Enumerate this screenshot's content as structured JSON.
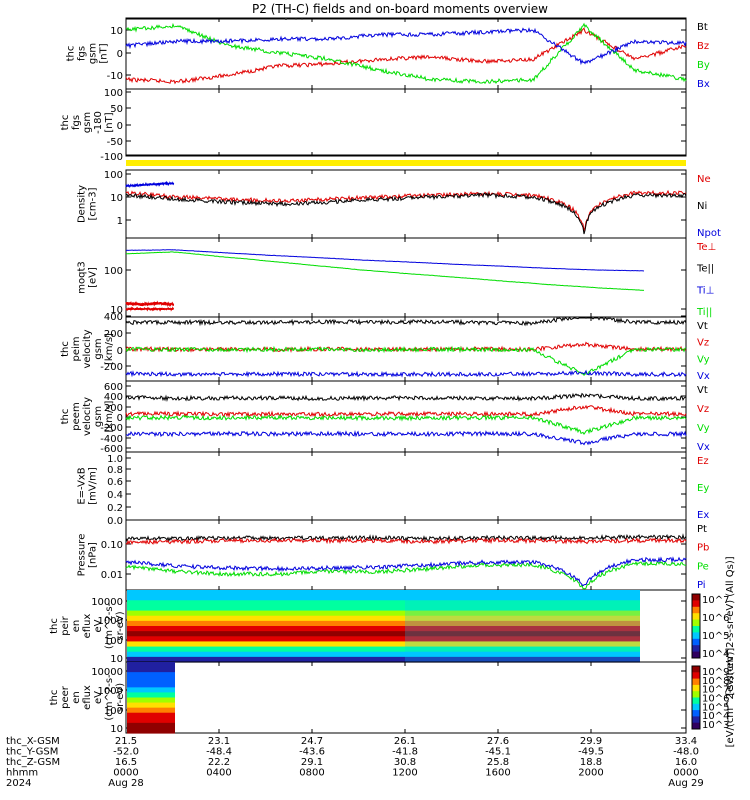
{
  "title": "P2 (TH-C) fields and on-board moments overview",
  "colors": {
    "black": "#000000",
    "red": "#e00000",
    "green": "#00dd00",
    "blue": "#0000dd",
    "yellow": "#ffee00"
  },
  "chart_data": [
    {
      "type": "line",
      "panel": "fgs",
      "ylabel": [
        "thc",
        "fgs",
        "gsm",
        "[nT]"
      ],
      "yticks": [
        "10",
        "0",
        "-10"
      ],
      "ylim": [
        -18,
        18
      ],
      "series": [
        {
          "name": "Bt",
          "color": "#000000",
          "values": [
            16,
            16.5,
            16,
            15.5,
            16,
            16,
            16.5,
            16.5,
            17,
            16,
            17,
            16
          ]
        },
        {
          "name": "Bz",
          "color": "#e00000",
          "values": [
            -12,
            -13,
            -10,
            -6,
            -5,
            -3,
            -2,
            -4,
            -3,
            10,
            -3,
            3
          ]
        },
        {
          "name": "By",
          "color": "#00dd00",
          "values": [
            10,
            12,
            3,
            0,
            -3,
            -8,
            -12,
            -13,
            -12,
            12,
            -8,
            -12
          ]
        },
        {
          "name": "Bx",
          "color": "#0000dd",
          "values": [
            3,
            5,
            5,
            6,
            6,
            8,
            8,
            9,
            10,
            -5,
            5,
            4
          ]
        }
      ]
    },
    {
      "type": "line",
      "panel": "fgs-180",
      "ylabel": [
        "thc",
        "fgs",
        "gsm",
        "-180",
        "[nT]"
      ],
      "yticks": [
        "100",
        "50",
        "0",
        "-50",
        "-100"
      ],
      "ylim": [
        -130,
        120
      ],
      "series": [
        {
          "name": "",
          "color": "#000000",
          "values": [
            -118,
            -118,
            -118,
            -118,
            -118,
            -118,
            -118,
            -118,
            -118,
            -116,
            -118,
            -118
          ]
        }
      ]
    },
    {
      "type": "line",
      "panel": "density",
      "ylabel": [
        "Density",
        "[cm-3]"
      ],
      "yticks": [
        "100",
        "10",
        "1"
      ],
      "scale": "log",
      "series": [
        {
          "name": "Ne",
          "color": "#e00000",
          "values": [
            15,
            10,
            8,
            7,
            8,
            10,
            12,
            14,
            12,
            0.3,
            15,
            15
          ]
        },
        {
          "name": "Ni",
          "color": "#000000",
          "values": [
            12,
            8,
            6,
            5,
            6,
            8,
            10,
            12,
            10,
            0.2,
            12,
            12
          ]
        },
        {
          "name": "Npot",
          "color": "#0000dd",
          "values": [
            30,
            40
          ]
        }
      ]
    },
    {
      "type": "line",
      "panel": "moms",
      "ylabel": [
        "moqt3",
        "[eV]"
      ],
      "yticks": [
        "100",
        "10"
      ],
      "scale": "log",
      "series": [
        {
          "name": "Te⊥",
          "color": "#e00000",
          "values": [
            14,
            13
          ]
        },
        {
          "name": "Te||",
          "color": "#000000",
          "values": []
        },
        {
          "name": "Ti⊥",
          "color": "#0000dd",
          "values": [
            320,
            330,
            280,
            240,
            210,
            180,
            160,
            140,
            125,
            110,
            100,
            95
          ]
        },
        {
          "name": "Ti||",
          "color": "#00dd00",
          "values": [
            260,
            290,
            220,
            170,
            130,
            100,
            80,
            65,
            52,
            42,
            35,
            30
          ]
        }
      ]
    },
    {
      "type": "line",
      "panel": "peim",
      "ylabel": [
        "thc",
        "peim",
        "velocity",
        "gsm",
        "[km/s]"
      ],
      "yticks": [
        "400",
        "200",
        "0",
        "-200"
      ],
      "ylim": [
        -320,
        420
      ],
      "series": [
        {
          "name": "Vt",
          "color": "#000000",
          "values": [
            320,
            325,
            320,
            322,
            330,
            325,
            330,
            320,
            315,
            400,
            325,
            320
          ]
        },
        {
          "name": "Vz",
          "color": "#e00000",
          "values": [
            5,
            0,
            0,
            0,
            5,
            0,
            0,
            5,
            0,
            60,
            0,
            5
          ]
        },
        {
          "name": "Vy",
          "color": "#00dd00",
          "values": [
            0,
            0,
            -5,
            0,
            0,
            -5,
            0,
            0,
            -10,
            -300,
            0,
            0
          ]
        },
        {
          "name": "Vx",
          "color": "#0000dd",
          "values": [
            -290,
            -300,
            -300,
            -295,
            -300,
            -300,
            -300,
            -300,
            -295,
            -280,
            -300,
            -300
          ]
        }
      ]
    },
    {
      "type": "line",
      "panel": "peem",
      "ylabel": [
        "thc",
        "peem",
        "velocity",
        "gsm",
        "[km/s]"
      ],
      "yticks": [
        "600",
        "400",
        "200",
        "0",
        "-200",
        "-400",
        "-600"
      ],
      "ylim": [
        -620,
        620
      ],
      "series": [
        {
          "name": "Vt",
          "color": "#000000",
          "values": [
            380,
            360,
            370,
            365,
            360,
            370,
            365,
            360,
            360,
            420,
            360,
            360
          ]
        },
        {
          "name": "Vz",
          "color": "#e00000",
          "values": [
            60,
            60,
            50,
            60,
            50,
            60,
            60,
            60,
            55,
            200,
            60,
            60
          ]
        },
        {
          "name": "Vy",
          "color": "#00dd00",
          "values": [
            -20,
            -10,
            -20,
            -10,
            -15,
            -20,
            -20,
            -15,
            -10,
            -300,
            -20,
            -20
          ]
        },
        {
          "name": "Vx",
          "color": "#0000dd",
          "values": [
            -330,
            -330,
            -320,
            -330,
            -320,
            -330,
            -330,
            -320,
            -330,
            -500,
            -330,
            -330
          ]
        }
      ]
    },
    {
      "type": "line",
      "panel": "efield",
      "ylabel": [
        "E=-VxB",
        "[mV/m]"
      ],
      "yticks": [
        "1.0",
        "0.8",
        "0.6",
        "0.4",
        "0.2",
        "0.0"
      ],
      "ylim": [
        0,
        1
      ],
      "series": [
        {
          "name": "Ez",
          "color": "#e00000",
          "values": []
        },
        {
          "name": "Ey",
          "color": "#00dd00",
          "values": []
        },
        {
          "name": "Ex",
          "color": "#0000dd",
          "values": []
        }
      ]
    },
    {
      "type": "line",
      "panel": "pressure",
      "ylabel": [
        "Pressure",
        "[nPa]"
      ],
      "yticks": [
        "0.10",
        "0.01"
      ],
      "scale": "log",
      "series": [
        {
          "name": "Pt",
          "color": "#000000",
          "values": [
            0.15,
            0.15,
            0.16,
            0.16,
            0.16,
            0.16,
            0.15,
            0.16,
            0.16,
            0.16,
            0.17,
            0.17
          ]
        },
        {
          "name": "Pb",
          "color": "#e00000",
          "values": [
            0.11,
            0.12,
            0.13,
            0.13,
            0.13,
            0.13,
            0.12,
            0.13,
            0.13,
            0.12,
            0.13,
            0.13
          ]
        },
        {
          "name": "Pe",
          "color": "#00dd00",
          "values": [
            0.018,
            0.012,
            0.01,
            0.01,
            0.012,
            0.012,
            0.015,
            0.02,
            0.02,
            0.003,
            0.022,
            0.022
          ]
        },
        {
          "name": "Pi",
          "color": "#0000dd",
          "values": [
            0.025,
            0.018,
            0.016,
            0.015,
            0.016,
            0.017,
            0.02,
            0.025,
            0.025,
            0.004,
            0.03,
            0.03
          ]
        }
      ]
    },
    {
      "type": "heatmap",
      "panel": "peir",
      "ylabel": [
        "thc",
        "peir",
        "en",
        "eflux",
        "eV",
        "(cm^2-s-",
        "sr-eV)"
      ],
      "yticks": [
        "10000",
        "1000",
        "100",
        "10"
      ],
      "colorbar_label": "[eV/(cm^2-s-sr-eV) (All Qs)]",
      "colorbar_ticks": [
        "10^7",
        "10^6",
        "10^5",
        "10^4"
      ]
    },
    {
      "type": "heatmap",
      "panel": "peer",
      "ylabel": [
        "thc",
        "peer",
        "en",
        "eflux",
        "eV",
        "(cm^2-s-",
        "sr-eV)"
      ],
      "yticks": [
        "10000",
        "1000",
        "100",
        "10"
      ],
      "colorbar_label": "[eV/(cm^2-s-sr-eV)]",
      "colorbar_ticks": [
        "10^9",
        "10^8",
        "10^7",
        "10^6",
        "10^5",
        "10^4",
        "10^3"
      ]
    }
  ],
  "xaxis": {
    "rows": [
      {
        "label": "thc_X-GSM",
        "values": [
          "21.5",
          "23.1",
          "24.7",
          "26.1",
          "27.6",
          "29.9",
          "33.4"
        ]
      },
      {
        "label": "thc_Y-GSM",
        "values": [
          "-52.0",
          "-48.4",
          "-43.6",
          "-41.8",
          "-45.1",
          "-49.5",
          "-48.0"
        ]
      },
      {
        "label": "thc_Z-GSM",
        "values": [
          "16.5",
          "22.2",
          "29.1",
          "30.8",
          "25.8",
          "18.8",
          "16.0"
        ]
      },
      {
        "label": "hhmm",
        "values": [
          "0000",
          "0400",
          "0800",
          "1200",
          "1600",
          "2000",
          "0000"
        ]
      },
      {
        "label": "2024",
        "values": [
          "Aug 28",
          "",
          "",
          "",
          "",
          "",
          "Aug 29"
        ]
      }
    ]
  }
}
